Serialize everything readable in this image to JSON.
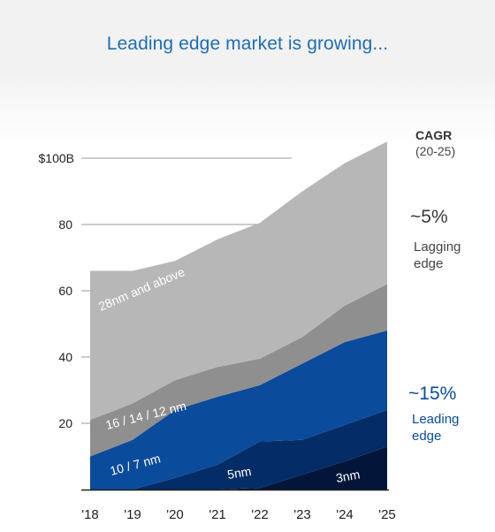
{
  "title": "Leading edge market is growing...",
  "cagr": {
    "header": "CAGR",
    "period": "(20-25)",
    "lagging_value": "~5%",
    "lagging_label_1": "Lagging",
    "lagging_label_2": "edge",
    "leading_value": "~15%",
    "leading_label_1": "Leading",
    "leading_label_2": "edge"
  },
  "chart_data": {
    "type": "area",
    "stacked": true,
    "x": [
      "'18",
      "'19",
      "'20",
      "'21",
      "'22",
      "'23",
      "'24",
      "'25"
    ],
    "y_ticks": [
      {
        "value": 20,
        "label": "20"
      },
      {
        "value": 40,
        "label": "40"
      },
      {
        "value": 60,
        "label": "60"
      },
      {
        "value": 80,
        "label": "80"
      },
      {
        "value": 100,
        "label": "$100B"
      }
    ],
    "ylim": [
      0,
      105
    ],
    "grid": "horizontal",
    "series": [
      {
        "name": "3nm",
        "color": "#03163a",
        "values": [
          0,
          0,
          0,
          0,
          0.5,
          4.5,
          8.5,
          13
        ]
      },
      {
        "name": "5nm",
        "color": "#042c66",
        "values": [
          0,
          0,
          3.5,
          7.5,
          14,
          10.5,
          11,
          11
        ]
      },
      {
        "name": "10 / 7 nm",
        "color": "#0b4b9c",
        "values": [
          10,
          15,
          20.5,
          20.5,
          17,
          23,
          25,
          24
        ]
      },
      {
        "name": "16 / 14 / 12 nm",
        "color": "#8f8f8f",
        "values": [
          11,
          11,
          9,
          9,
          8,
          8,
          11,
          14
        ]
      },
      {
        "name": "28nm and above",
        "color": "#b7b7b7",
        "values": [
          45,
          40,
          36,
          38.5,
          41,
          44,
          43,
          43
        ]
      }
    ]
  }
}
